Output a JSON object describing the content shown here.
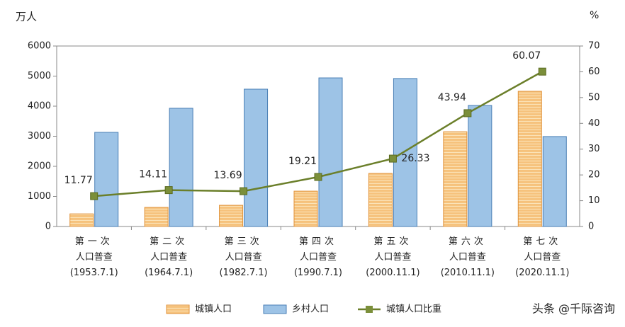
{
  "chart_data": {
    "type": "bar-line",
    "y_label": "万人",
    "y2_label": "%",
    "categories": [
      "第一次\n人口普查\n(1953.7.1)",
      "第二次\n人口普查\n(1964.7.1)",
      "第三次\n人口普查\n(1982.7.1)",
      "第四次\n人口普查\n(1990.7.1)",
      "第五次\n人口普查\n(2000.11.1)",
      "第六次\n人口普查\n(2010.11.1)",
      "第七次\n人口普查\n(2020.11.1)"
    ],
    "series": [
      {
        "name": "城镇人口",
        "type": "bar",
        "color": "#f6c27c",
        "values": [
          420,
          635,
          705,
          1175,
          1765,
          3150,
          4495
        ]
      },
      {
        "name": "乡村人口",
        "type": "bar",
        "color": "#9dc3e6",
        "values": [
          3130,
          3930,
          4565,
          4940,
          4920,
          4025,
          2990
        ]
      },
      {
        "name": "城镇人口比重",
        "type": "line",
        "axis": "y2",
        "color": "#6b7f2a",
        "values": [
          11.77,
          14.11,
          13.69,
          19.21,
          26.33,
          43.94,
          60.07
        ]
      }
    ],
    "ylim": [
      0,
      6000
    ],
    "yticks": [
      0,
      1000,
      2000,
      3000,
      4000,
      5000,
      6000
    ],
    "y2lim": [
      0,
      70
    ],
    "y2ticks": [
      0,
      10,
      20,
      30,
      40,
      50,
      60,
      70
    ],
    "watermark": "头条 @千际咨询"
  }
}
